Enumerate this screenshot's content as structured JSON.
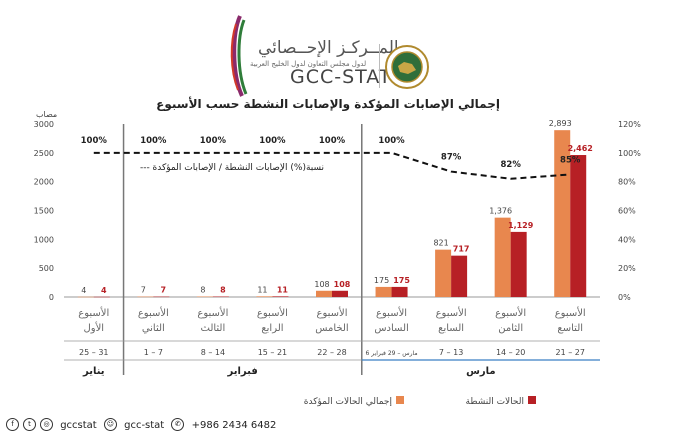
{
  "header": {
    "logo_arabic": "المــركـز الإحــصائي",
    "logo_sub": "لدول مجلس التعاون لدول الخليج العربية",
    "logo_en": "GCC-STAT",
    "chart_title": "إجمالي الإصابات المؤكدة والإصابات النشطة حسب الأسبوع"
  },
  "footer": {
    "social_handle": "gccstat",
    "snapchat_handle": "gcc-stat",
    "phone": "+986 2434 6482"
  },
  "chart_data": {
    "type": "bar",
    "title": "إجمالي الإصابات المؤكدة والإصابات النشطة حسب الأسبوع",
    "ylabel": "مصاب",
    "ylim": [
      0,
      3000
    ],
    "y_ticks": [
      "0",
      "500",
      "1000",
      "1500",
      "2000",
      "2500",
      "3000"
    ],
    "y2lim": [
      0,
      120
    ],
    "y2_ticks": [
      "0%",
      "20%",
      "40%",
      "60%",
      "80%",
      "100%",
      "120%"
    ],
    "categories": [
      "الأسبوع الأول",
      "الأسبوع الثاني",
      "الأسبوع الثالث",
      "الأسبوع الرابع",
      "الأسبوع الخامس",
      "الأسبوع السادس",
      "الأسبوع السابع",
      "الأسبوع الثامن",
      "الأسبوع التاسع"
    ],
    "date_ranges": [
      "25 – 31",
      "1 – 7",
      "8 – 14",
      "15 – 21",
      "22 – 28",
      "6 مارس – 29 فبراير",
      "7 – 13",
      "14 – 20",
      "21 – 27"
    ],
    "months": [
      "يناير",
      "فبراير",
      "مارس"
    ],
    "series": [
      {
        "name": "إجمالي الحالات المؤكدة",
        "color": "#e8874e",
        "values": [
          4,
          7,
          8,
          11,
          108,
          175,
          821,
          1376,
          2893
        ],
        "labels": [
          "4",
          "7",
          "8",
          "11",
          "108",
          "175",
          "821",
          "1,376",
          "2,893"
        ]
      },
      {
        "name": "الحالات النشطة",
        "color": "#b72025",
        "values": [
          4,
          7,
          8,
          11,
          108,
          175,
          717,
          1129,
          2462
        ],
        "labels": [
          "4",
          "7",
          "8",
          "11",
          "108",
          "175",
          "717",
          "1,129",
          "2,462"
        ]
      }
    ],
    "ratio_line": {
      "name": "نسبة(%) الإصابات النشطة / الإصابات المؤكدة",
      "values": [
        100,
        100,
        100,
        100,
        100,
        100,
        87,
        82,
        85
      ],
      "labels": [
        "100%",
        "100%",
        "100%",
        "100%",
        "100%",
        "100%",
        "87%",
        "82%",
        "85%"
      ]
    },
    "legend_position": "bottom"
  }
}
